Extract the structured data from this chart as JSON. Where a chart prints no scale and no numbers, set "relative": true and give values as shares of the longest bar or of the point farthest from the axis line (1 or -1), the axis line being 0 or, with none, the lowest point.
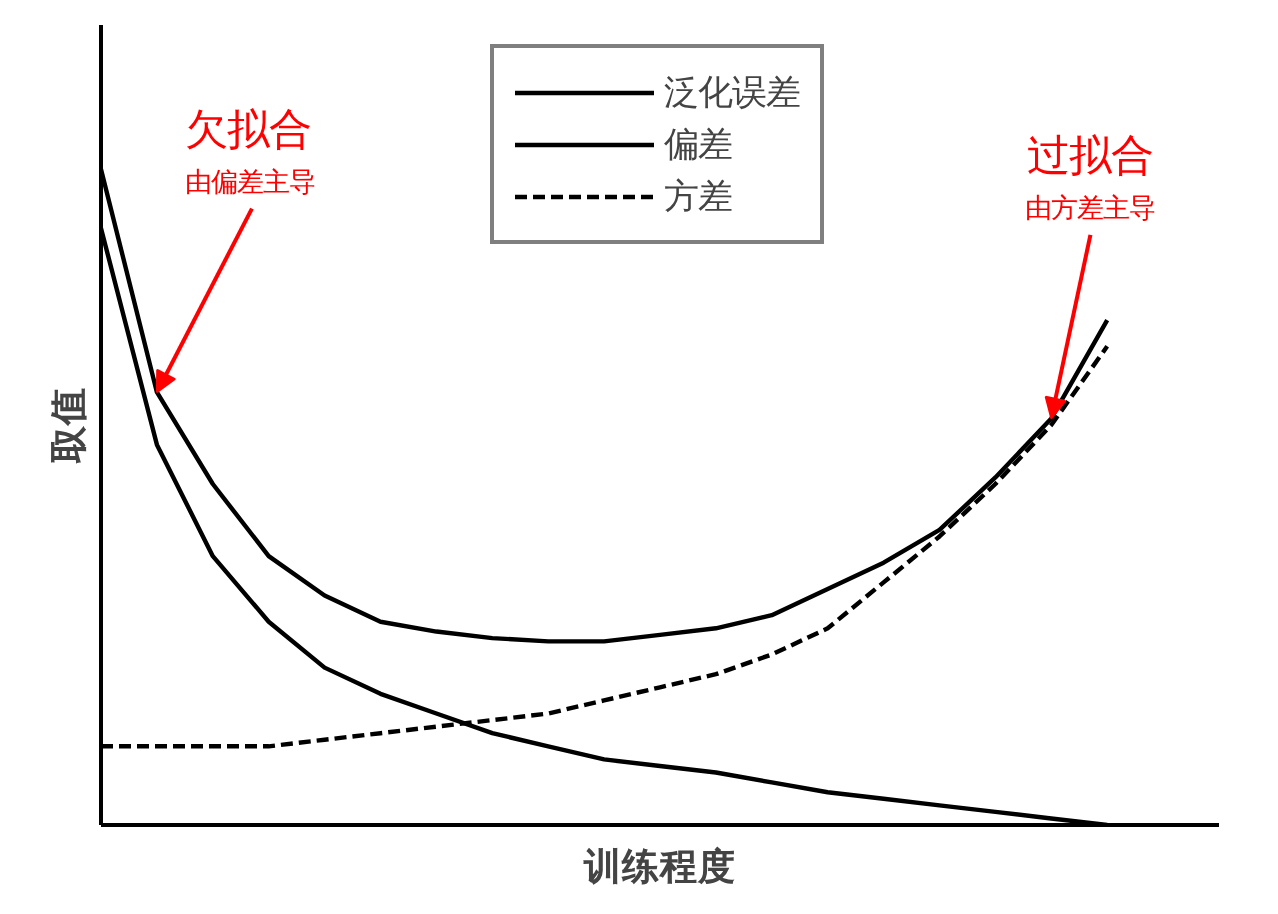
{
  "chart_data": {
    "type": "line",
    "relative": true,
    "xlabel": "训练程度",
    "ylabel": "取值",
    "grid": false,
    "legend": "top right",
    "categories": [
      null,
      null,
      null,
      null,
      null,
      null,
      null,
      null,
      null,
      null,
      null,
      null,
      null,
      null,
      null,
      null,
      null,
      null,
      null
    ],
    "series": [
      {
        "name": "泛化误差",
        "color": "#000000",
        "line_style": "solid",
        "values": [
          1,
          0.66,
          0.52,
          0.41,
          0.35,
          0.31,
          0.295,
          0.285,
          0.28,
          0.28,
          0.29,
          0.3,
          0.32,
          0.36,
          0.4,
          0.45,
          0.53,
          0.62,
          0.77
        ]
      },
      {
        "name": "偏差",
        "color": "#000000",
        "line_style": "solid",
        "values": [
          0.91,
          0.58,
          0.41,
          0.31,
          0.24,
          0.2,
          0.17,
          0.14,
          0.12,
          0.1,
          0.09,
          0.08,
          0.065,
          0.05,
          0.04,
          0.03,
          0.02,
          0.01,
          0
        ]
      },
      {
        "name": "方差",
        "color": "#000000",
        "line_style": "dashed",
        "values": [
          0.12,
          0.12,
          0.12,
          0.12,
          0.13,
          0.14,
          0.15,
          0.16,
          0.17,
          0.19,
          0.21,
          0.23,
          0.26,
          0.3,
          0.37,
          0.44,
          0.52,
          0.61,
          0.73
        ]
      }
    ],
    "annotations": [
      "欠拟合",
      "由偏差主导",
      "过拟合",
      "由方差主导"
    ]
  }
}
